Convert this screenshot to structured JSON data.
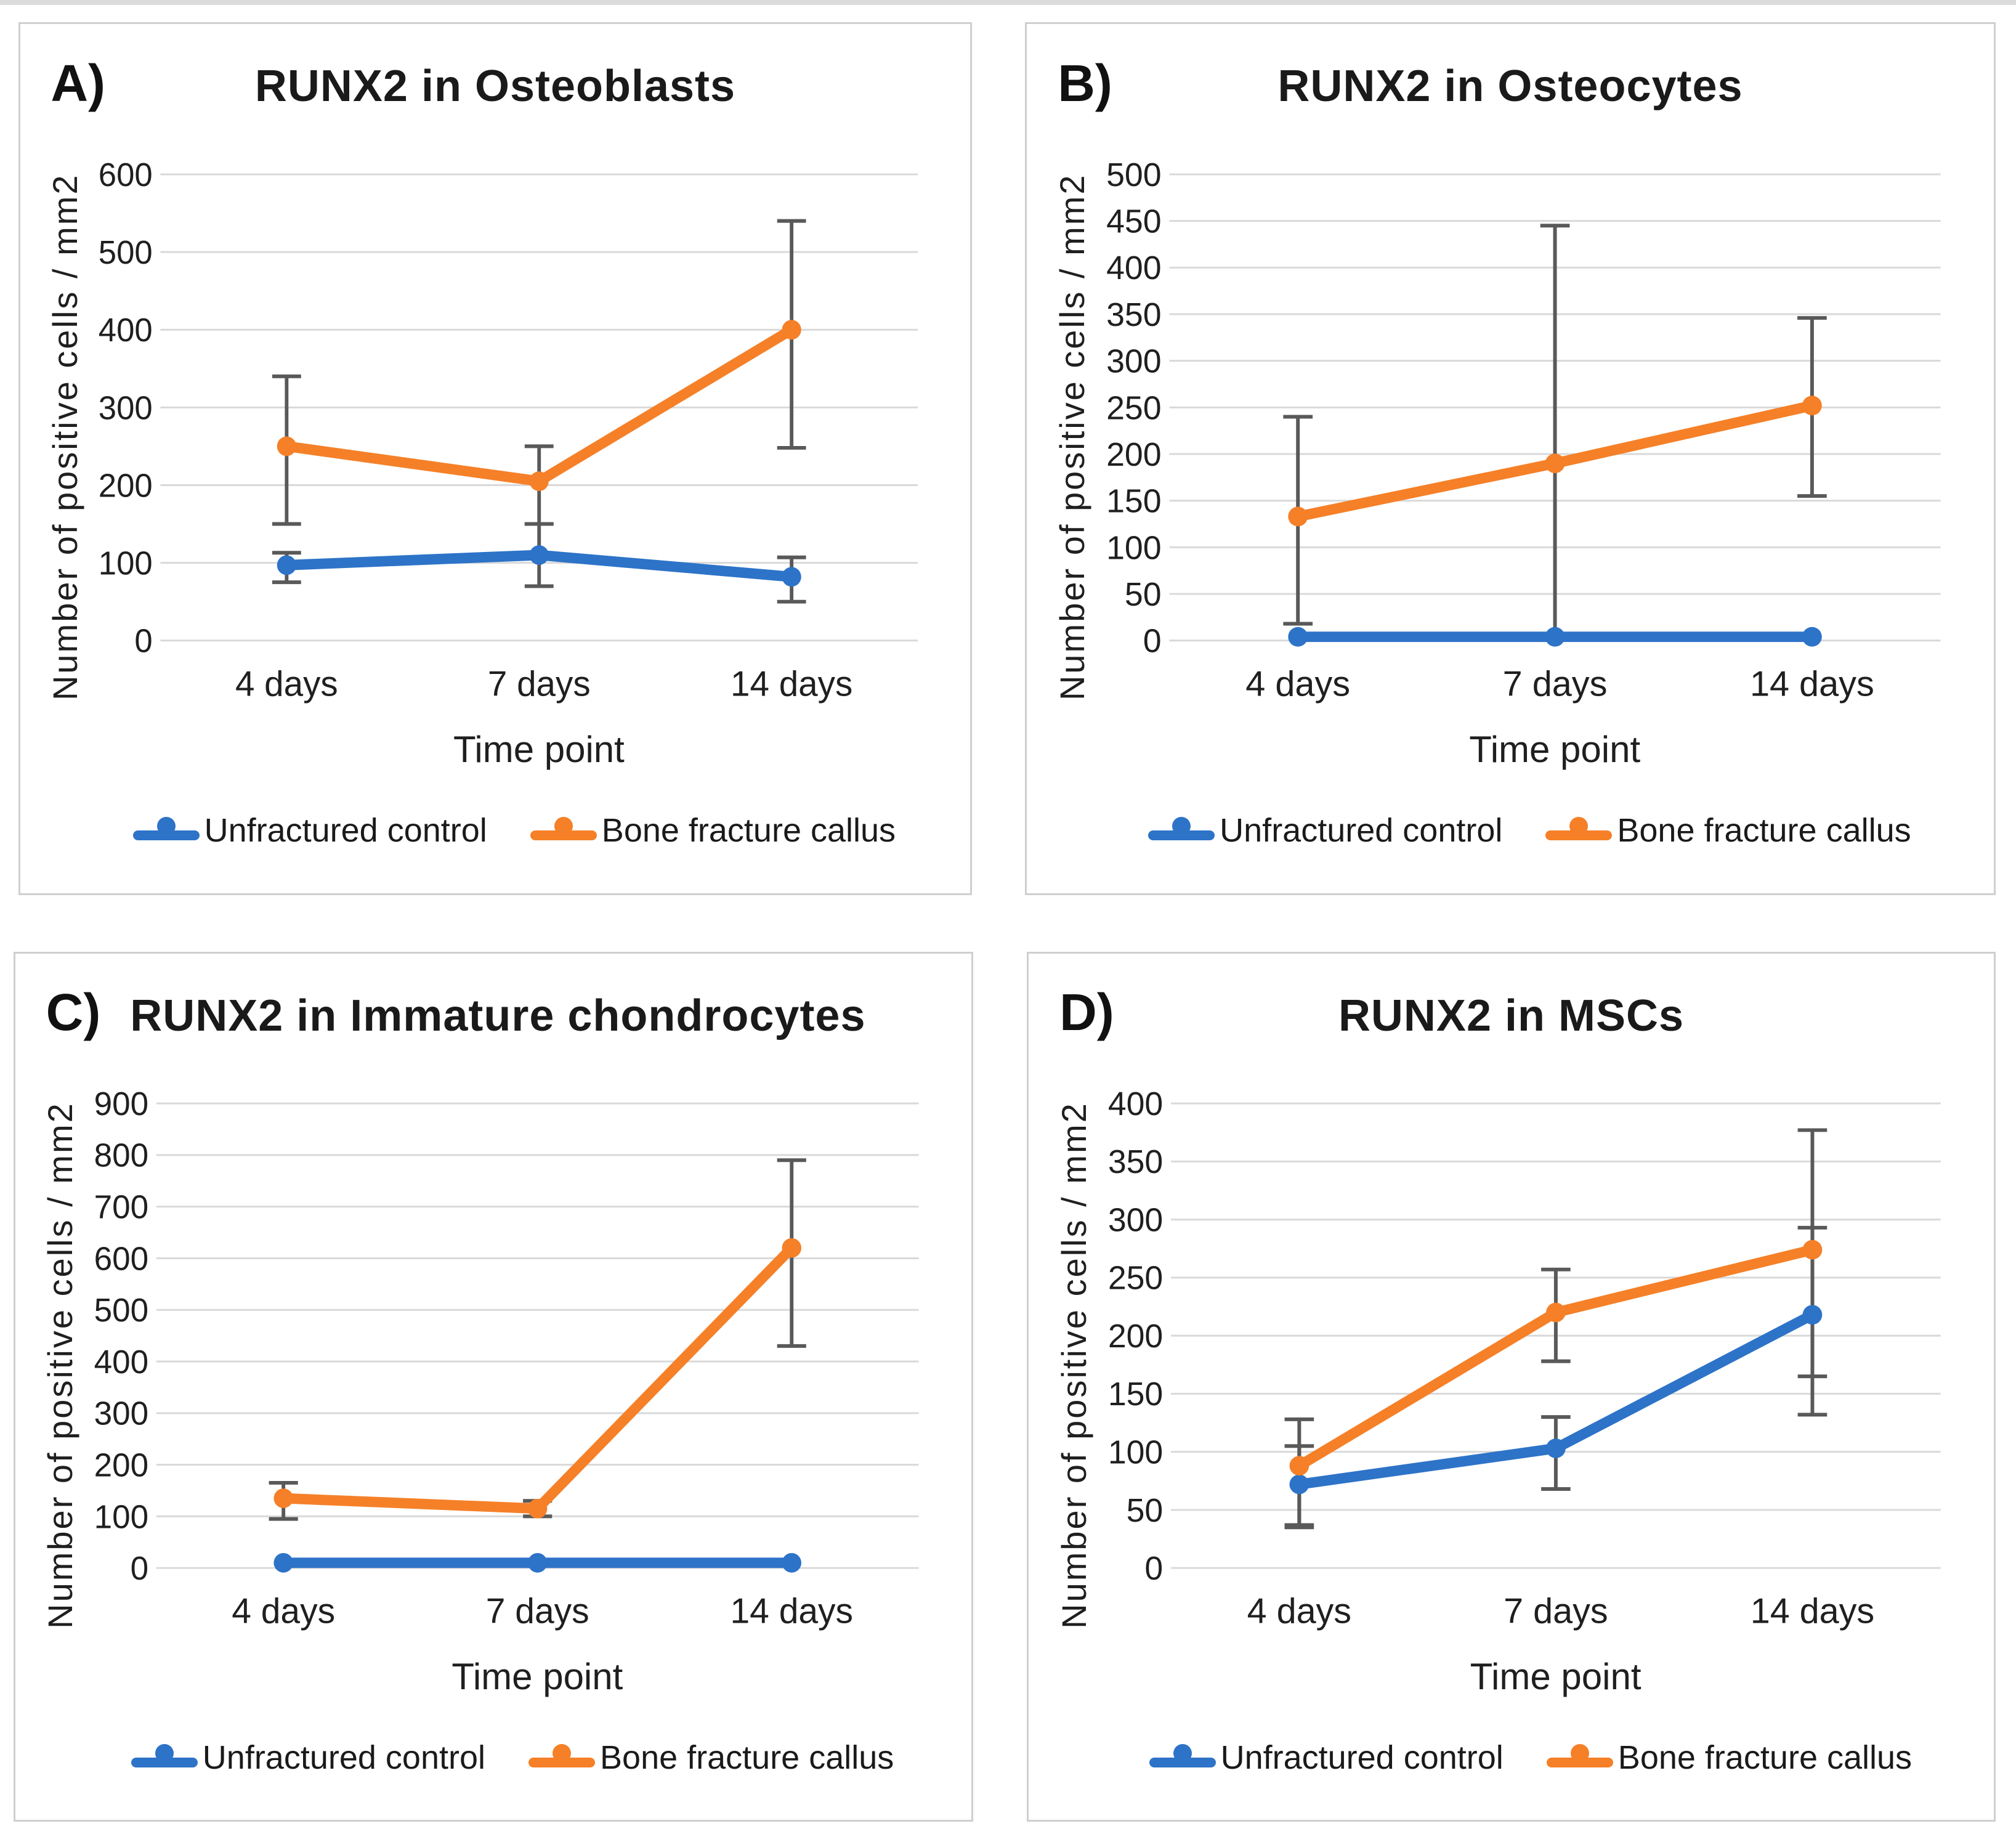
{
  "styles": {
    "series_blue": "#2D73C8",
    "series_orange": "#F58028",
    "grid_color": "#D9D9D9",
    "error_bar_color": "#595959",
    "panel_border_color": "#CFCFCF",
    "text_color": "#1A1A1A",
    "background": "#FFFFFF"
  },
  "chart_data": [
    {
      "panel_label": "A)",
      "type": "line",
      "title": "RUNX2 in Osteoblasts",
      "xlabel": "Time point",
      "ylabel": "Number of positive cells / mm2",
      "categories": [
        "4 days",
        "7 days",
        "14 days"
      ],
      "ylim": [
        0,
        600
      ],
      "ytick_step": 100,
      "grid": true,
      "legend_position": "bottom",
      "marker": "circle",
      "error_bars": true,
      "series": [
        {
          "name": "Unfractured control",
          "color": "#2D73C8",
          "values": [
            97,
            110,
            82
          ],
          "err_low": [
            75,
            70,
            50
          ],
          "err_high": [
            113,
            150,
            107
          ]
        },
        {
          "name": "Bone fracture callus",
          "color": "#F58028",
          "values": [
            250,
            205,
            400
          ],
          "err_low": [
            150,
            150,
            248
          ],
          "err_high": [
            340,
            250,
            540
          ]
        }
      ]
    },
    {
      "panel_label": "B)",
      "type": "line",
      "title": "RUNX2 in Osteocytes",
      "xlabel": "Time point",
      "ylabel": "Number of positive cells / mm2",
      "categories": [
        "4 days",
        "7 days",
        "14 days"
      ],
      "ylim": [
        0,
        500
      ],
      "ytick_step": 50,
      "grid": true,
      "legend_position": "bottom",
      "marker": "circle",
      "error_bars": true,
      "series": [
        {
          "name": "Unfractured control",
          "color": "#2D73C8",
          "values": [
            4,
            4,
            4
          ],
          "err_low": null,
          "err_high": null
        },
        {
          "name": "Bone fracture callus",
          "color": "#F58028",
          "values": [
            133,
            190,
            252
          ],
          "err_low": [
            18,
            2,
            155
          ],
          "err_high": [
            240,
            445,
            346
          ]
        }
      ]
    },
    {
      "panel_label": "C)",
      "type": "line",
      "title": "RUNX2 in Immature chondrocytes",
      "xlabel": "Time point",
      "ylabel": "Number of positive cells / mm2",
      "categories": [
        "4 days",
        "7 days",
        "14 days"
      ],
      "ylim": [
        0,
        900
      ],
      "ytick_step": 100,
      "grid": true,
      "legend_position": "bottom",
      "marker": "circle",
      "error_bars": true,
      "series": [
        {
          "name": "Unfractured control",
          "color": "#2D73C8",
          "values": [
            10,
            10,
            10
          ],
          "err_low": null,
          "err_high": null
        },
        {
          "name": "Bone fracture callus",
          "color": "#F58028",
          "values": [
            135,
            115,
            620
          ],
          "err_low": [
            95,
            100,
            430
          ],
          "err_high": [
            165,
            130,
            790
          ]
        }
      ]
    },
    {
      "panel_label": "D)",
      "type": "line",
      "title": "RUNX2 in MSCs",
      "xlabel": "Time point",
      "ylabel": "Number of positive cells / mm2",
      "categories": [
        "4 days",
        "7 days",
        "14 days"
      ],
      "ylim": [
        0,
        400
      ],
      "ytick_step": 50,
      "grid": true,
      "legend_position": "bottom",
      "marker": "circle",
      "error_bars": true,
      "series": [
        {
          "name": "Unfractured control",
          "color": "#2D73C8",
          "values": [
            72,
            103,
            218
          ],
          "err_low": [
            35,
            68,
            132
          ],
          "err_high": [
            105,
            130,
            293
          ]
        },
        {
          "name": "Bone fracture callus",
          "color": "#F58028",
          "values": [
            88,
            220,
            274
          ],
          "err_low": [
            37,
            178,
            165
          ],
          "err_high": [
            128,
            257,
            377
          ]
        }
      ]
    }
  ]
}
